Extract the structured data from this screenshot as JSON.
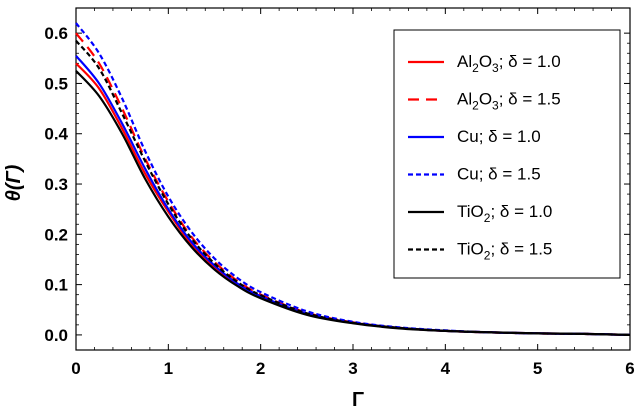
{
  "chart_data": {
    "type": "line",
    "xlabel": "Γ",
    "ylabel": "θ(Γ)",
    "xlim": [
      0,
      6
    ],
    "ylim": [
      -0.03,
      0.65
    ],
    "xticks": [
      "0",
      "1",
      "2",
      "3",
      "4",
      "5",
      "6"
    ],
    "yticks": [
      "0.0",
      "0.1",
      "0.2",
      "0.3",
      "0.4",
      "0.5",
      "0.6"
    ],
    "legend_position": "top-right",
    "series": [
      {
        "name": "Al₂O₃; δ = 1.0",
        "name_main": "Al",
        "name_sub1": "2",
        "name_mid": "O",
        "name_sub2": "3",
        "name_tail": "; δ = 1.0",
        "color": "#ff0000",
        "dash": "solid",
        "x": [
          0,
          0.25,
          0.5,
          0.75,
          1.0,
          1.25,
          1.5,
          1.75,
          2.0,
          2.5,
          3.0,
          3.5,
          4.0,
          4.5,
          5.0,
          5.5,
          6.0
        ],
        "y": [
          0.54,
          0.49,
          0.41,
          0.32,
          0.245,
          0.18,
          0.135,
          0.1,
          0.076,
          0.042,
          0.024,
          0.014,
          0.008,
          0.005,
          0.003,
          0.002,
          0.0
        ]
      },
      {
        "name": "Al₂O₃; δ = 1.5",
        "name_main": "Al",
        "name_sub1": "2",
        "name_mid": "O",
        "name_sub2": "3",
        "name_tail": "; δ = 1.5",
        "color": "#ff0000",
        "dash": "long",
        "x": [
          0,
          0.25,
          0.5,
          0.75,
          1.0,
          1.25,
          1.5,
          1.75,
          2.0,
          2.5,
          3.0,
          3.5,
          4.0,
          4.5,
          5.0,
          5.5,
          6.0
        ],
        "y": [
          0.6,
          0.54,
          0.45,
          0.35,
          0.265,
          0.195,
          0.145,
          0.107,
          0.08,
          0.044,
          0.025,
          0.014,
          0.008,
          0.005,
          0.003,
          0.002,
          0.0
        ]
      },
      {
        "name": "Cu; δ = 1.0",
        "name_main": "Cu",
        "name_tail": "; δ = 1.0",
        "color": "#0000ff",
        "dash": "solid",
        "x": [
          0,
          0.25,
          0.5,
          0.75,
          1.0,
          1.25,
          1.5,
          1.75,
          2.0,
          2.5,
          3.0,
          3.5,
          4.0,
          4.5,
          5.0,
          5.5,
          6.0
        ],
        "y": [
          0.555,
          0.5,
          0.42,
          0.33,
          0.25,
          0.185,
          0.138,
          0.102,
          0.077,
          0.042,
          0.024,
          0.014,
          0.008,
          0.005,
          0.003,
          0.002,
          0.0
        ]
      },
      {
        "name": "Cu; δ = 1.5",
        "name_main": "Cu",
        "name_tail": "; δ = 1.5",
        "color": "#0000ff",
        "dash": "short",
        "x": [
          0,
          0.25,
          0.5,
          0.75,
          1.0,
          1.25,
          1.5,
          1.75,
          2.0,
          2.5,
          3.0,
          3.5,
          4.0,
          4.5,
          5.0,
          5.5,
          6.0
        ],
        "y": [
          0.62,
          0.56,
          0.47,
          0.365,
          0.275,
          0.205,
          0.152,
          0.113,
          0.085,
          0.047,
          0.026,
          0.015,
          0.009,
          0.005,
          0.003,
          0.002,
          0.0
        ]
      },
      {
        "name": "TiO₂; δ = 1.0",
        "name_main": "TiO",
        "name_sub1": "2",
        "name_tail": "; δ = 1.0",
        "color": "#000000",
        "dash": "solid",
        "x": [
          0,
          0.25,
          0.5,
          0.75,
          1.0,
          1.25,
          1.5,
          1.75,
          2.0,
          2.5,
          3.0,
          3.5,
          4.0,
          4.5,
          5.0,
          5.5,
          6.0
        ],
        "y": [
          0.525,
          0.475,
          0.4,
          0.31,
          0.235,
          0.175,
          0.13,
          0.097,
          0.073,
          0.04,
          0.023,
          0.013,
          0.008,
          0.005,
          0.003,
          0.002,
          0.0
        ]
      },
      {
        "name": "TiO₂; δ = 1.5",
        "name_main": "TiO",
        "name_sub1": "2",
        "name_tail": "; δ = 1.5",
        "color": "#000000",
        "dash": "short",
        "x": [
          0,
          0.25,
          0.5,
          0.75,
          1.0,
          1.25,
          1.5,
          1.75,
          2.0,
          2.5,
          3.0,
          3.5,
          4.0,
          4.5,
          5.0,
          5.5,
          6.0
        ],
        "y": [
          0.585,
          0.53,
          0.44,
          0.345,
          0.26,
          0.192,
          0.142,
          0.105,
          0.079,
          0.043,
          0.024,
          0.014,
          0.008,
          0.005,
          0.003,
          0.002,
          0.0
        ]
      }
    ]
  }
}
